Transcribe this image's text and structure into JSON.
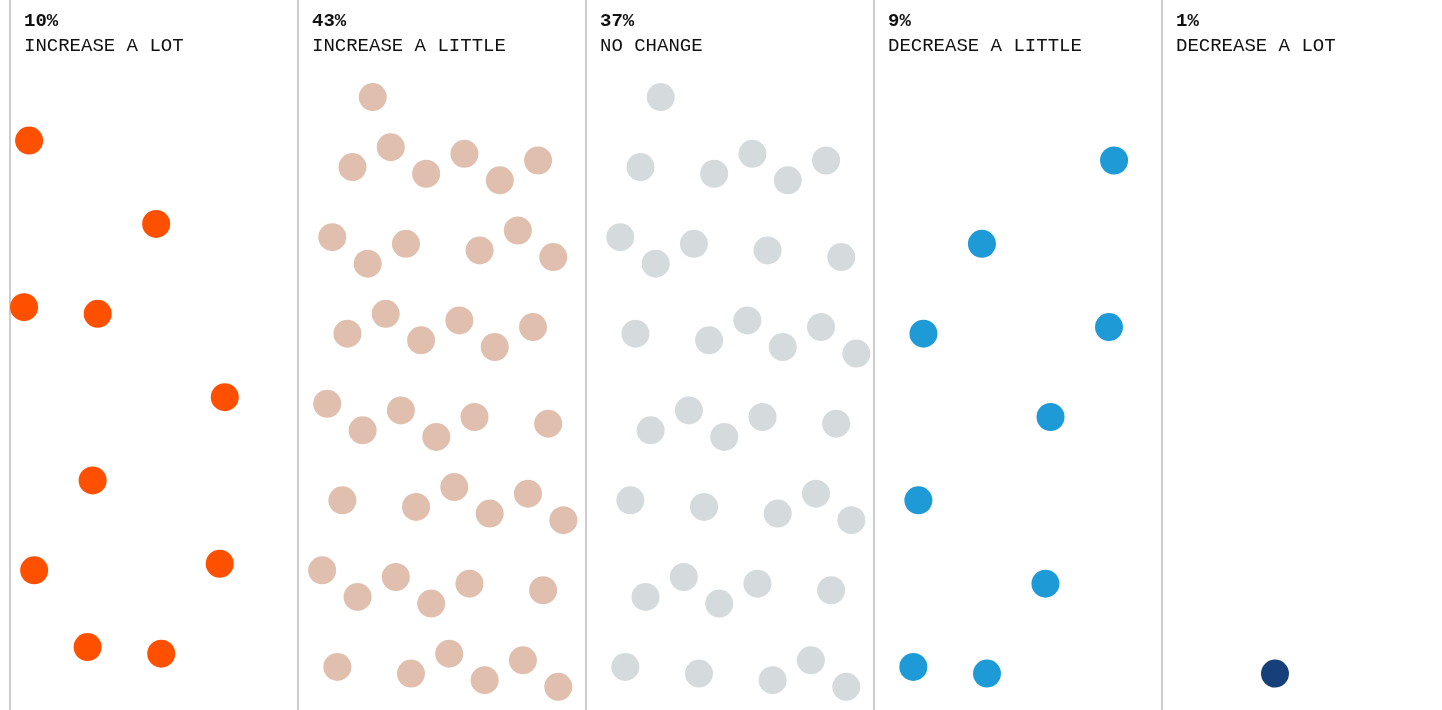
{
  "chart_data": {
    "type": "other",
    "categories": [
      "INCREASE A LOT",
      "INCREASE A LITTLE",
      "NO CHANGE",
      "DECREASE A LITTLE",
      "DECREASE A LOT"
    ],
    "values": [
      10,
      43,
      37,
      9,
      1
    ],
    "value_labels": [
      "10%",
      "43%",
      "37%",
      "9%",
      "1%"
    ],
    "colors": [
      "#ff5000",
      "#e0bfae",
      "#d5dadc",
      "#1e9bd7",
      "#173f7a"
    ]
  }
}
